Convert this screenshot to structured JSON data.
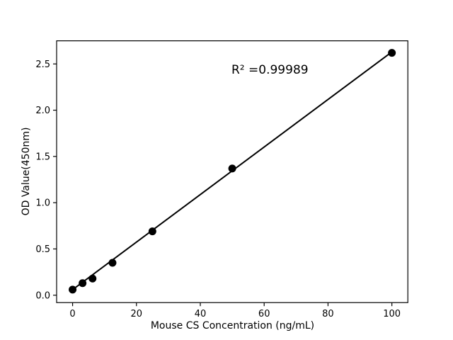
{
  "figure": {
    "background": "#ffffff",
    "frame_color": "#000000"
  },
  "chart_data": {
    "type": "scatter",
    "title": "",
    "xlabel": "Mouse CS Concentration (ng/mL)",
    "ylabel": "OD Value(450nm)",
    "annotation": "R² =0.99989",
    "x": [
      0,
      3.125,
      6.25,
      12.5,
      25,
      50,
      100
    ],
    "y": [
      0.06,
      0.13,
      0.18,
      0.35,
      0.69,
      1.37,
      2.62
    ],
    "fit_line": {
      "x": [
        0,
        100
      ],
      "y": [
        0.06,
        2.63
      ]
    },
    "xticks": [
      0,
      20,
      40,
      60,
      80,
      100
    ],
    "xtick_labels": [
      "0",
      "20",
      "40",
      "60",
      "80",
      "100"
    ],
    "yticks": [
      0,
      0.5,
      1.0,
      1.5,
      2.0,
      2.5
    ],
    "ytick_labels": [
      "0.0",
      "0.5",
      "1.0",
      "1.5",
      "2.0",
      "2.5"
    ],
    "xlim": [
      -5,
      105
    ],
    "ylim": [
      -0.08,
      2.75
    ],
    "marker_color": "#000000",
    "line_color": "#000000",
    "marker_radius": 5.5,
    "line_width": 2,
    "grid": false,
    "legend": null
  }
}
